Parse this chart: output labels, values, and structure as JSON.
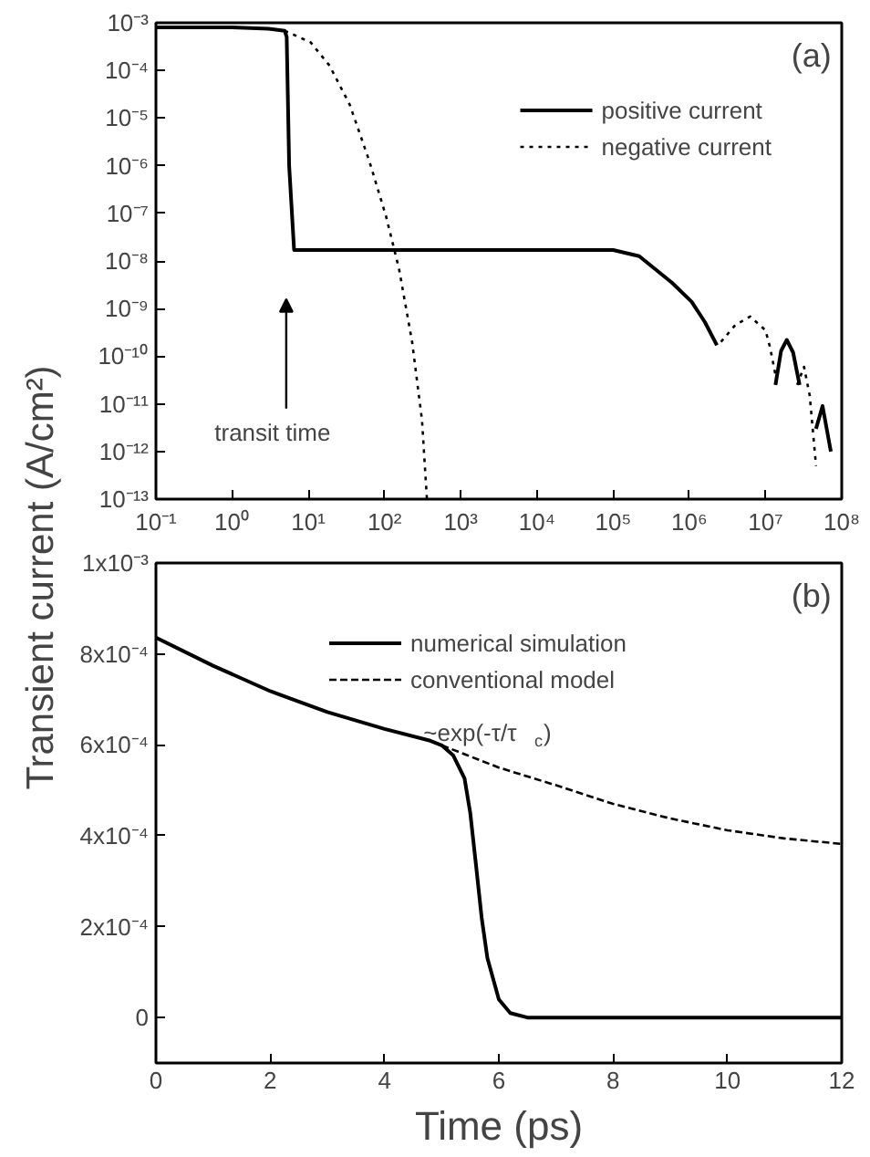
{
  "chart_data": [
    {
      "type": "line",
      "log": "xy",
      "legend": "top right",
      "grid": false,
      "ylabel": "Transient current (A/cm²)",
      "xlim": [
        0.1,
        100000000
      ],
      "ylim": [
        1e-13,
        0.001
      ],
      "xticks": [
        {
          "value": 0.1,
          "label": "10⁻¹"
        },
        {
          "value": 1,
          "label": "10⁰"
        },
        {
          "value": 10,
          "label": "10¹"
        },
        {
          "value": 100,
          "label": "10²"
        },
        {
          "value": 1000,
          "label": "10³"
        },
        {
          "value": 10000,
          "label": "10⁴"
        },
        {
          "value": 100000,
          "label": "10⁵"
        },
        {
          "value": 1000000,
          "label": "10⁶"
        },
        {
          "value": 10000000,
          "label": "10⁷"
        },
        {
          "value": 100000000,
          "label": "10⁸"
        }
      ],
      "yticks": [
        {
          "value": 1e-13,
          "label": "10⁻¹³"
        },
        {
          "value": 1e-12,
          "label": "10⁻¹²"
        },
        {
          "value": 1e-11,
          "label": "10⁻¹¹"
        },
        {
          "value": 1e-10,
          "label": "10⁻¹⁰"
        },
        {
          "value": 1e-09,
          "label": "10⁻⁹"
        },
        {
          "value": 1e-08,
          "label": "10⁻⁸"
        },
        {
          "value": 1e-07,
          "label": "10⁻⁷"
        },
        {
          "value": 1e-06,
          "label": "10⁻⁶"
        },
        {
          "value": 1e-05,
          "label": "10⁻⁵"
        },
        {
          "value": 0.0001,
          "label": "10⁻⁴"
        },
        {
          "value": 0.001,
          "label": "10⁻³"
        }
      ],
      "annotations": [
        "(a)",
        "transit time"
      ],
      "series": [
        {
          "name": "positive current",
          "color": "#000000",
          "line_style": "solid",
          "x": [
            0.1,
            1,
            3,
            4.9,
            5.2,
            5.6,
            6.5,
            10,
            100,
            1000,
            10000,
            100000,
            220000,
            590000,
            1070000,
            1600000,
            2300000,
            5000000,
            13500000,
            16000000,
            19000000,
            23000000,
            28000000,
            35000000,
            46000000,
            56000000,
            72000000
          ],
          "values": [
            0.0008,
            0.0008,
            0.00075,
            0.00068,
            0.0005,
            1e-06,
            1.7e-08,
            1.7e-08,
            1.7e-08,
            1.7e-08,
            1.7e-08,
            1.7e-08,
            1.26e-08,
            3.5e-09,
            1.4e-09,
            5.2e-10,
            1.7e-10,
            null,
            2.5e-11,
            1.3e-10,
            2.2e-10,
            1.2e-10,
            2.5e-11,
            null,
            3e-12,
            9e-12,
            1e-12
          ]
        },
        {
          "name": "negative current",
          "color": "#000000",
          "line_style": "dotted",
          "x": [
            4.9,
            10.7,
            19,
            35,
            63,
            105,
            155,
            230,
            310,
            360,
            1000000,
            2600000,
            4000000,
            6300000,
            10000000,
            11500000,
            14000000,
            20000000,
            26000000,
            32000000,
            38000000,
            46000000
          ],
          "values": [
            0.00068,
            0.00039,
            0.000126,
            1.9e-05,
            1.26e-06,
            8.5e-08,
            6.8e-09,
            2e-10,
            4.6e-12,
            1e-13,
            null,
            2e-10,
            4.5e-10,
            6.8e-10,
            3.5e-10,
            1.5e-10,
            3e-11,
            null,
            2.5e-11,
            6e-11,
            1.5e-11,
            5e-13
          ]
        }
      ]
    },
    {
      "type": "line",
      "legend": "top right",
      "grid": false,
      "xlabel": "Time (ps)",
      "xlim": [
        0,
        12
      ],
      "ylim": [
        -0.0001,
        0.001
      ],
      "xticks": [
        0,
        2,
        4,
        6,
        8,
        10,
        12
      ],
      "yticks": [
        {
          "value": 0,
          "label": "0"
        },
        {
          "value": 0.0002,
          "label": "2x10⁻⁴"
        },
        {
          "value": 0.0004,
          "label": "4x10⁻⁴"
        },
        {
          "value": 0.0006,
          "label": "6x10⁻⁴"
        },
        {
          "value": 0.0008,
          "label": "8x10⁻⁴"
        },
        {
          "value": 0.001,
          "label": "1x10⁻³"
        }
      ],
      "annotations": [
        "(b)",
        "~exp(-τ/τ$_{c}$)"
      ],
      "series": [
        {
          "name": "numerical simulation",
          "color": "#000000",
          "line_style": "solid",
          "x": [
            0,
            1,
            2,
            3,
            4,
            4.8,
            5,
            5.2,
            5.4,
            5.5,
            5.6,
            5.7,
            5.8,
            6,
            6.2,
            6.5,
            12
          ],
          "values": [
            0.000836,
            0.000774,
            0.000718,
            0.000672,
            0.000635,
            0.000609,
            0.000599,
            0.000577,
            0.000526,
            0.00045,
            0.000336,
            0.000219,
            0.000131,
            4e-05,
            1e-05,
            0,
            0
          ]
        },
        {
          "name": "conventional model",
          "color": "#000000",
          "line_style": "dashed",
          "x": [
            5,
            6,
            7,
            8,
            9,
            10,
            11,
            12
          ],
          "values": [
            0.000599,
            0.00055,
            0.000511,
            0.00047,
            0.000438,
            0.000412,
            0.000394,
            0.000382
          ]
        }
      ]
    }
  ]
}
